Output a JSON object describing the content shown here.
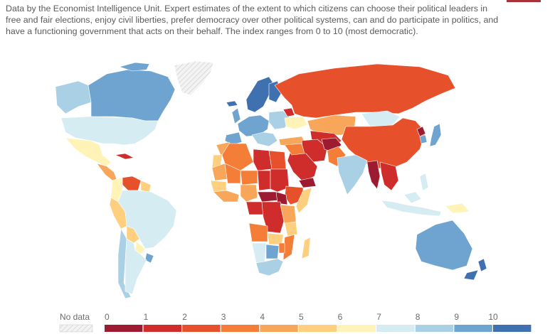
{
  "description": "Data by the Economist Intelligence Unit. Expert estimates of the extent to which citizens can choose their political leaders in free and fair elections, enjoy civil liberties, prefer democracy over other political systems, can and do participate in politics, and have a functioning government that acts on their behalf. The index ranges from 0 to 10 (most democratic).",
  "accent_color": "#a8323a",
  "legend": {
    "no_data_label": "No data",
    "ticks": [
      "0",
      "1",
      "2",
      "3",
      "4",
      "5",
      "6",
      "7",
      "8",
      "9",
      "10"
    ],
    "colors": [
      "#9c1b30",
      "#cf2d2b",
      "#e6502b",
      "#f47e37",
      "#f7a65a",
      "#fdcf7f",
      "#fff3b8",
      "#d6ecf3",
      "#a9d0e4",
      "#6ea4cf",
      "#3f70b0"
    ]
  },
  "map": {
    "no_data_color": "#eaeaea",
    "ocean_color": "#ffffff"
  }
}
